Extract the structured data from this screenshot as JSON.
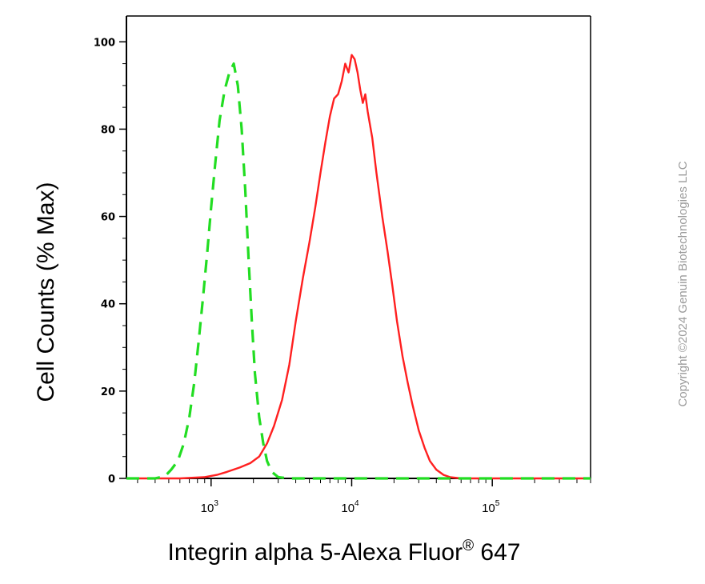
{
  "chart_data": {
    "type": "line",
    "title": "",
    "xlabel": "Integrin alpha 5-Alexa Fluor",
    "xlabel_superscript": "®",
    "xlabel_suffix": " 647",
    "ylabel": "Cell Counts (% Max)",
    "x_scale": "log",
    "xlim": [
      250,
      500000
    ],
    "ylim": [
      0,
      105
    ],
    "x_ticks": [
      {
        "base": "10",
        "exp": "3",
        "value": 1000
      },
      {
        "base": "10",
        "exp": "4",
        "value": 10000
      },
      {
        "base": "10",
        "exp": "5",
        "value": 100000
      }
    ],
    "y_ticks": [
      {
        "label": "0",
        "value": 0
      },
      {
        "label": "20",
        "value": 20
      },
      {
        "label": "40",
        "value": 40
      },
      {
        "label": "60",
        "value": 60
      },
      {
        "label": "80",
        "value": 80
      },
      {
        "label": "100",
        "value": 100
      }
    ],
    "grid": false,
    "legend": "none",
    "series": [
      {
        "color": "#ff2020",
        "style": "solid",
        "points": [
          [
            250,
            0
          ],
          [
            600,
            0
          ],
          [
            900,
            0.3
          ],
          [
            1100,
            0.8
          ],
          [
            1300,
            1.5
          ],
          [
            1600,
            2.5
          ],
          [
            1900,
            3.5
          ],
          [
            2200,
            5
          ],
          [
            2500,
            8
          ],
          [
            2800,
            12
          ],
          [
            3200,
            18
          ],
          [
            3600,
            26
          ],
          [
            4000,
            36
          ],
          [
            4500,
            46
          ],
          [
            5000,
            54
          ],
          [
            5500,
            62
          ],
          [
            6000,
            70
          ],
          [
            6500,
            77
          ],
          [
            7000,
            83
          ],
          [
            7500,
            87
          ],
          [
            8000,
            88
          ],
          [
            8500,
            91
          ],
          [
            9000,
            95
          ],
          [
            9500,
            93
          ],
          [
            10000,
            97
          ],
          [
            10500,
            96
          ],
          [
            11000,
            93
          ],
          [
            11500,
            89
          ],
          [
            12000,
            86
          ],
          [
            12500,
            88
          ],
          [
            13000,
            84
          ],
          [
            14000,
            78
          ],
          [
            15000,
            70
          ],
          [
            16500,
            60
          ],
          [
            18000,
            52
          ],
          [
            19500,
            44
          ],
          [
            21000,
            36
          ],
          [
            23000,
            28
          ],
          [
            25000,
            22
          ],
          [
            27000,
            17
          ],
          [
            30000,
            11
          ],
          [
            33000,
            7
          ],
          [
            36000,
            4
          ],
          [
            40000,
            2
          ],
          [
            45000,
            0.8
          ],
          [
            50000,
            0.3
          ],
          [
            60000,
            0
          ],
          [
            500000,
            0
          ]
        ]
      },
      {
        "color": "#22dd22",
        "style": "dashed",
        "points": [
          [
            250,
            0
          ],
          [
            400,
            0
          ],
          [
            470,
            0.5
          ],
          [
            520,
            2
          ],
          [
            580,
            4
          ],
          [
            640,
            8
          ],
          [
            700,
            14
          ],
          [
            760,
            22
          ],
          [
            820,
            32
          ],
          [
            880,
            42
          ],
          [
            940,
            52
          ],
          [
            1000,
            62
          ],
          [
            1070,
            72
          ],
          [
            1150,
            82
          ],
          [
            1250,
            89
          ],
          [
            1350,
            93
          ],
          [
            1450,
            95
          ],
          [
            1550,
            90
          ],
          [
            1650,
            80
          ],
          [
            1750,
            66
          ],
          [
            1850,
            50
          ],
          [
            1950,
            36
          ],
          [
            2050,
            24
          ],
          [
            2200,
            14
          ],
          [
            2350,
            8
          ],
          [
            2500,
            4
          ],
          [
            2700,
            1.5
          ],
          [
            3000,
            0.3
          ],
          [
            3500,
            0
          ],
          [
            500000,
            0
          ]
        ]
      }
    ]
  },
  "copyright": "Copyright ©2024 Genuin Biotechnologies LLC"
}
